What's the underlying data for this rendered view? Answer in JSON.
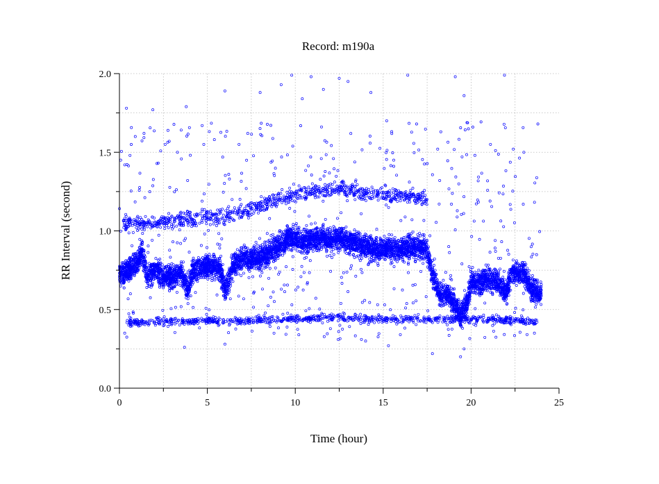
{
  "chart_data": {
    "type": "scatter",
    "title": "Record:  m190a",
    "xlabel": "Time (hour)",
    "ylabel": "RR Interval (second)",
    "xlim": [
      0,
      25
    ],
    "ylim": [
      0,
      2.0
    ],
    "xticks": [
      0,
      5,
      10,
      15,
      20,
      25
    ],
    "xtick_labels": [
      "0",
      "5",
      "10",
      "15",
      "20",
      "25"
    ],
    "yticks": [
      0.0,
      0.5,
      1.0,
      1.5,
      2.0
    ],
    "ytick_labels": [
      "0.0",
      "0.5",
      "1.0",
      "1.5",
      "2.0"
    ],
    "x_minor_step": 2.5,
    "y_minor_step": 0.25,
    "grid": true,
    "marker": "open-circle",
    "series": [
      {
        "name": "",
        "color": "#0000ff",
        "trend_main": [
          [
            0.0,
            0.72
          ],
          [
            0.5,
            0.75
          ],
          [
            1.0,
            0.8
          ],
          [
            1.3,
            0.86
          ],
          [
            1.6,
            0.7
          ],
          [
            2.0,
            0.75
          ],
          [
            2.4,
            0.72
          ],
          [
            3.0,
            0.7
          ],
          [
            3.5,
            0.74
          ],
          [
            3.9,
            0.62
          ],
          [
            4.2,
            0.75
          ],
          [
            5.0,
            0.78
          ],
          [
            5.7,
            0.77
          ],
          [
            6.0,
            0.62
          ],
          [
            6.5,
            0.78
          ],
          [
            7.0,
            0.82
          ],
          [
            7.5,
            0.83
          ],
          [
            8.0,
            0.83
          ],
          [
            8.5,
            0.86
          ],
          [
            9.0,
            0.9
          ],
          [
            9.5,
            0.95
          ],
          [
            10.0,
            0.95
          ],
          [
            10.5,
            0.93
          ],
          [
            11.0,
            0.95
          ],
          [
            11.5,
            0.96
          ],
          [
            12.0,
            0.93
          ],
          [
            12.5,
            0.96
          ],
          [
            13.0,
            0.93
          ],
          [
            13.5,
            0.92
          ],
          [
            14.0,
            0.9
          ],
          [
            14.5,
            0.88
          ],
          [
            15.0,
            0.89
          ],
          [
            15.5,
            0.88
          ],
          [
            16.0,
            0.89
          ],
          [
            16.5,
            0.9
          ],
          [
            17.0,
            0.9
          ],
          [
            17.5,
            0.88
          ],
          [
            17.8,
            0.72
          ],
          [
            18.2,
            0.6
          ],
          [
            18.7,
            0.6
          ],
          [
            19.0,
            0.55
          ],
          [
            19.4,
            0.46
          ],
          [
            19.8,
            0.55
          ],
          [
            20.0,
            0.68
          ],
          [
            20.5,
            0.67
          ],
          [
            21.0,
            0.7
          ],
          [
            21.5,
            0.68
          ],
          [
            22.0,
            0.6
          ],
          [
            22.3,
            0.74
          ],
          [
            23.0,
            0.73
          ],
          [
            23.5,
            0.62
          ],
          [
            24.0,
            0.6
          ]
        ],
        "band_secondary": [
          [
            0.2,
            1.05
          ],
          [
            1.5,
            1.05
          ],
          [
            6.5,
            1.1
          ],
          [
            9.0,
            1.2
          ],
          [
            11.0,
            1.25
          ],
          [
            12.5,
            1.27
          ],
          [
            14.8,
            1.23
          ],
          [
            16.8,
            1.22
          ],
          [
            17.5,
            1.2
          ]
        ],
        "band_low": [
          [
            0.3,
            0.42
          ],
          [
            1.5,
            0.42
          ],
          [
            6.5,
            0.43
          ],
          [
            10.0,
            0.44
          ],
          [
            12.0,
            0.45
          ],
          [
            14.8,
            0.44
          ],
          [
            17.0,
            0.44
          ],
          [
            19.5,
            0.44
          ],
          [
            21.0,
            0.44
          ],
          [
            23.8,
            0.42
          ]
        ],
        "outliers": [
          [
            0.4,
            1.78
          ],
          [
            1.9,
            1.77
          ],
          [
            3.8,
            1.79
          ],
          [
            6.0,
            1.89
          ],
          [
            9.8,
            1.99
          ],
          [
            10.9,
            1.98
          ],
          [
            12.5,
            1.97
          ],
          [
            16.4,
            1.99
          ],
          [
            19.1,
            1.98
          ],
          [
            21.9,
            1.99
          ],
          [
            13.0,
            1.95
          ],
          [
            11.6,
            1.9
          ],
          [
            9.2,
            1.93
          ],
          [
            8.0,
            1.88
          ],
          [
            5.4,
            1.58
          ],
          [
            4.8,
            1.55
          ],
          [
            2.6,
            1.55
          ],
          [
            0.3,
            1.42
          ],
          [
            0.6,
            1.48
          ],
          [
            22.4,
            1.52
          ],
          [
            23.0,
            1.5
          ],
          [
            20.1,
            1.66
          ],
          [
            21.1,
            1.55
          ],
          [
            15.2,
            1.7
          ],
          [
            18.1,
            1.52
          ],
          [
            16.9,
            1.68
          ],
          [
            14.3,
            1.88
          ],
          [
            7.3,
            1.62
          ],
          [
            3.3,
            1.5
          ],
          [
            23.8,
            1.68
          ],
          [
            0.9,
            1.6
          ],
          [
            1.4,
            1.62
          ],
          [
            6.8,
            1.55
          ],
          [
            15.6,
            1.45
          ],
          [
            19.6,
            1.86
          ],
          [
            10.4,
            1.84
          ],
          [
            0.3,
            0.35
          ],
          [
            3.7,
            0.26
          ],
          [
            6.0,
            0.28
          ],
          [
            17.8,
            0.22
          ],
          [
            19.4,
            0.2
          ],
          [
            19.6,
            0.25
          ],
          [
            23.6,
            0.35
          ],
          [
            15.3,
            0.27
          ],
          [
            14.0,
            0.3
          ]
        ]
      }
    ]
  }
}
